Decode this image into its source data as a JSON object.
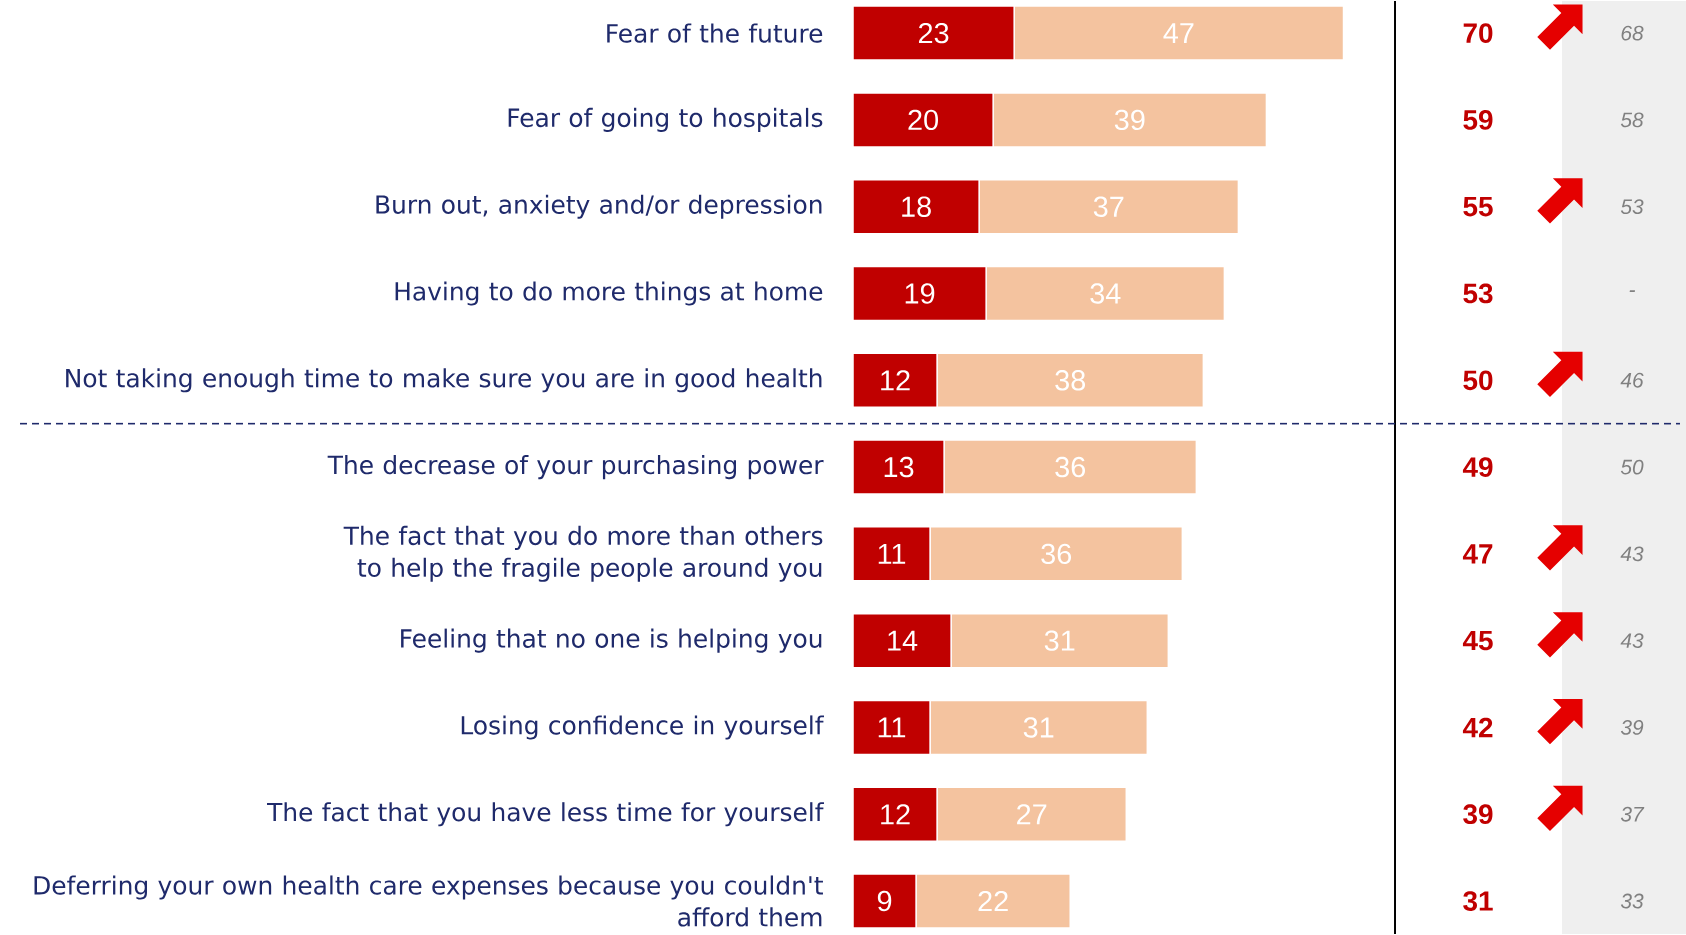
{
  "chart_data": {
    "type": "bar",
    "orientation": "horizontal",
    "stacked": true,
    "data_labels": true,
    "categories": [
      "Fear of the future",
      "Fear of going to hospitals",
      "Burn out, anxiety and/or depression",
      "Having to do more things at home",
      "Not taking enough time to make sure you are in good health",
      "The decrease of your purchasing power",
      "The fact that you do more than others to help the fragile people around you",
      "Feeling that no one is helping you",
      "Losing confidence in yourself",
      "The fact that you have less time for yourself",
      "Deferring your own health care expenses because you couldn't afford them"
    ],
    "series": [
      {
        "color": "#c00000",
        "values": [
          23,
          20,
          18,
          19,
          12,
          13,
          11,
          14,
          11,
          12,
          9
        ]
      },
      {
        "color": "#f4c39f",
        "values": [
          47,
          39,
          37,
          34,
          38,
          36,
          36,
          31,
          31,
          27,
          22
        ]
      }
    ],
    "annotations": [
      "70",
      "59",
      "55",
      "53",
      "50",
      "49",
      "47",
      "45",
      "42",
      "39",
      "31",
      "68",
      "58",
      "53",
      "-",
      "46",
      "50",
      "43",
      "43",
      "39",
      "37",
      "33"
    ]
  }
}
